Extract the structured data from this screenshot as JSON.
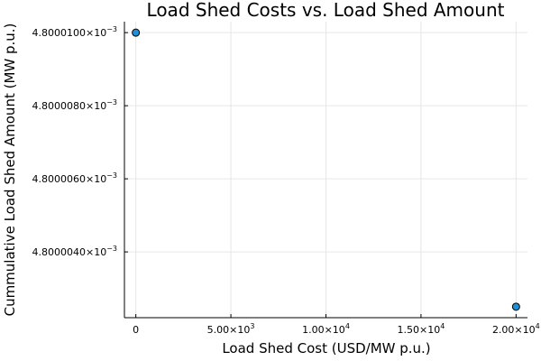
{
  "chart_data": {
    "type": "scatter",
    "title": "Load Shed Costs vs. Load Shed Amount",
    "xlabel": "Load Shed Cost (USD/MW p.u.)",
    "ylabel": "Cummulative Load Shed Amount (MW p.u.)",
    "xlim": [
      -600,
      20600
    ],
    "ylim": [
      0.0048000022,
      0.0048000103
    ],
    "grid": true,
    "legend": "none",
    "x_ticks": [
      {
        "value": 0,
        "mantissa": "0",
        "exponent": ""
      },
      {
        "value": 5000,
        "mantissa": "5.00×10",
        "exponent": "3"
      },
      {
        "value": 10000,
        "mantissa": "1.00×10",
        "exponent": "4"
      },
      {
        "value": 15000,
        "mantissa": "1.50×10",
        "exponent": "4"
      },
      {
        "value": 20000,
        "mantissa": "2.00×10",
        "exponent": "4"
      }
    ],
    "y_ticks": [
      {
        "value": 0.004800004,
        "mantissa": "4.8000040×10",
        "exponent": "−3"
      },
      {
        "value": 0.004800006,
        "mantissa": "4.8000060×10",
        "exponent": "−3"
      },
      {
        "value": 0.004800008,
        "mantissa": "4.8000080×10",
        "exponent": "−3"
      },
      {
        "value": 0.00480001,
        "mantissa": "4.8000100×10",
        "exponent": "−3"
      }
    ],
    "series": [
      {
        "color": "#1f8fd6",
        "points": [
          {
            "x": 0,
            "y": 0.00480001
          },
          {
            "x": 20000,
            "y": 0.0048000025
          }
        ]
      }
    ]
  }
}
